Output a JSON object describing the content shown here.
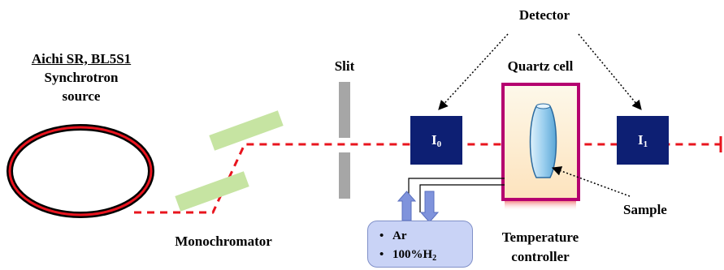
{
  "labels": {
    "facility": "Aichi SR, BL5S1",
    "source_line1": "Synchrotron",
    "source_line2": "source",
    "slit": "Slit",
    "detector": "Detector",
    "quartz_cell": "Quartz cell",
    "monochromator": "Monochromator",
    "sample": "Sample",
    "temp_line1": "Temperature",
    "temp_line2": "controller",
    "i0_main": "I",
    "i0_sub": "0",
    "i1_main": "I",
    "i1_sub": "1"
  },
  "gas": {
    "items": [
      {
        "main": "Ar",
        "sub": ""
      },
      {
        "main": "100%H",
        "sub": "2"
      }
    ],
    "bullet": "•"
  },
  "colors": {
    "beam": "#e8141e",
    "ring_outer": "#000000",
    "ring_inner": "#e8141e",
    "detector_box": "#0d1f73",
    "crystal": "#c6e4a2",
    "slit": "#a6a6a6",
    "cell_border": "#b5006f",
    "gas_box": "#c9d3f6",
    "arrows": "#7f93dc"
  }
}
